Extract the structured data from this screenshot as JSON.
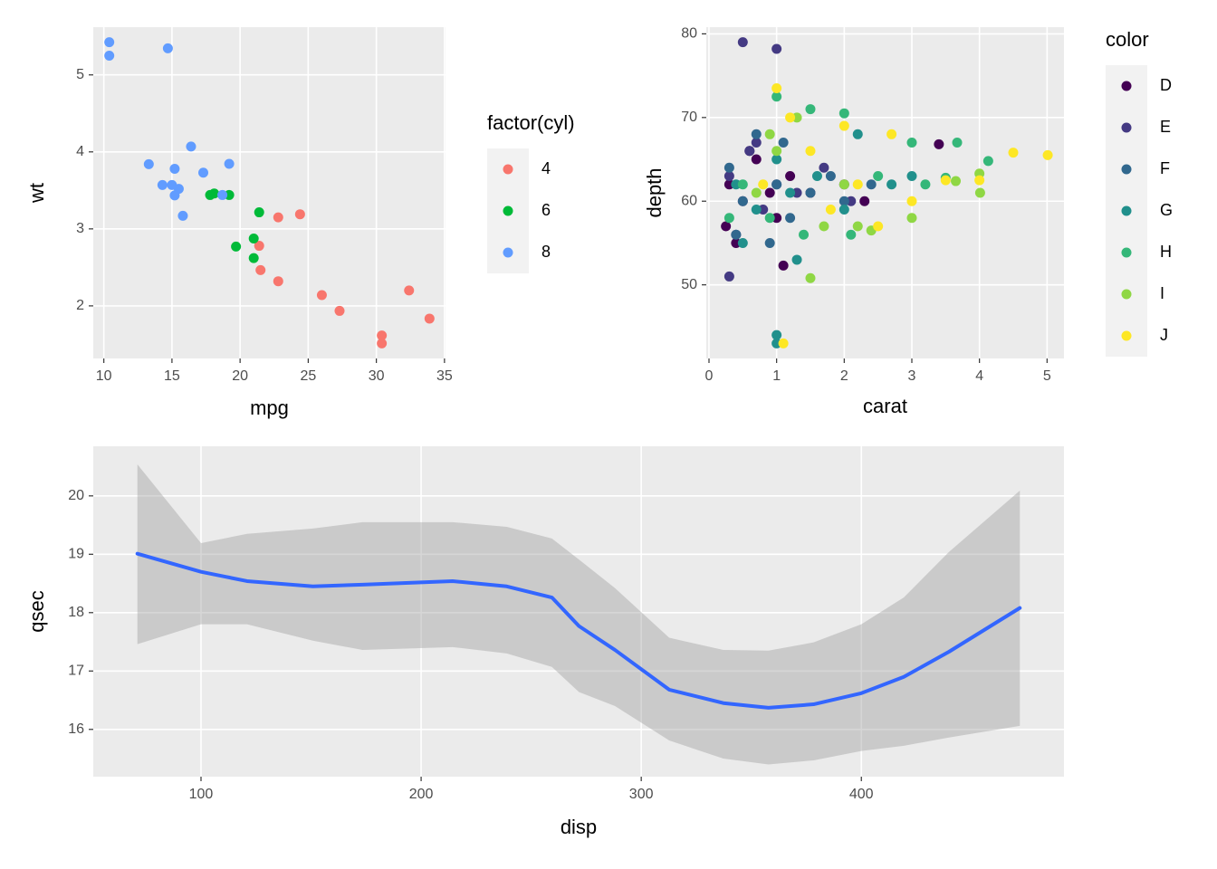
{
  "chart_data": [
    {
      "type": "scatter",
      "x_label": "mpg",
      "y_label": "wt",
      "legend_title": "factor(cyl)",
      "xlim": [
        9.225,
        35.075
      ],
      "ylim": [
        1.317,
        5.62
      ],
      "xticks": [
        10,
        15,
        20,
        25,
        30,
        35
      ],
      "yticks": [
        2,
        3,
        4,
        5
      ],
      "grid": true,
      "legend": "right",
      "series": [
        {
          "name": "4",
          "color": "#F8766D",
          "x": [
            22.8,
            24.4,
            22.8,
            32.4,
            30.4,
            33.9,
            21.5,
            27.3,
            26.0,
            30.4,
            21.4
          ],
          "y": [
            2.32,
            3.19,
            3.15,
            2.2,
            1.615,
            1.835,
            2.465,
            1.935,
            2.14,
            1.513,
            2.78
          ]
        },
        {
          "name": "6",
          "color": "#00BA38",
          "x": [
            21.0,
            21.0,
            21.4,
            18.1,
            19.2,
            17.8,
            19.7
          ],
          "y": [
            2.62,
            2.875,
            3.215,
            3.46,
            3.44,
            3.44,
            2.77
          ]
        },
        {
          "name": "8",
          "color": "#619CFF",
          "x": [
            18.7,
            14.3,
            16.4,
            17.3,
            15.2,
            10.4,
            10.4,
            14.7,
            15.5,
            15.2,
            13.3,
            19.2,
            15.8,
            15.0
          ],
          "y": [
            3.44,
            3.57,
            4.07,
            3.73,
            3.78,
            5.25,
            5.424,
            5.345,
            3.52,
            3.435,
            3.84,
            3.845,
            3.17,
            3.57
          ]
        }
      ]
    },
    {
      "type": "scatter",
      "x_label": "carat",
      "y_label": "depth",
      "legend_title": "color",
      "xlim": [
        -0.04,
        5.25
      ],
      "ylim": [
        41.2,
        80.8
      ],
      "xticks": [
        0,
        1,
        2,
        3,
        4,
        5
      ],
      "yticks": [
        50,
        60,
        70,
        80
      ],
      "grid": true,
      "legend": "right",
      "series": [
        {
          "name": "D",
          "color": "#440154",
          "x": [
            0.3,
            0.5,
            0.7,
            0.9,
            1.0,
            1.2,
            1.5,
            2.0,
            2.3,
            3.4,
            0.25,
            0.6,
            1.1,
            0.4
          ],
          "y": [
            62,
            60,
            65,
            61,
            58,
            63,
            61,
            62,
            60,
            66.8,
            57,
            66,
            52.3,
            55
          ]
        },
        {
          "name": "E",
          "color": "#443A83",
          "x": [
            0.5,
            1.0,
            0.3,
            0.3,
            0.6,
            0.8,
            1.0,
            1.3,
            1.7,
            2.1,
            0.4,
            0.7
          ],
          "y": [
            79,
            78.2,
            51,
            63,
            66,
            59,
            62,
            61,
            64,
            60,
            56,
            67
          ]
        },
        {
          "name": "F",
          "color": "#31688E",
          "x": [
            0.3,
            0.5,
            0.7,
            1.0,
            1.2,
            1.5,
            1.8,
            2.0,
            2.4,
            0.9,
            0.4,
            1.1
          ],
          "y": [
            64,
            60,
            68,
            62,
            58,
            61,
            63,
            60,
            62,
            55,
            56,
            67
          ]
        },
        {
          "name": "G",
          "color": "#21908C",
          "x": [
            1.0,
            1.0,
            0.4,
            0.7,
            1.0,
            1.2,
            1.6,
            2.0,
            2.2,
            2.7,
            3.0,
            0.5,
            1.3
          ],
          "y": [
            44,
            43,
            62,
            59,
            65,
            61,
            63,
            59,
            68,
            62,
            63,
            55,
            53
          ]
        },
        {
          "name": "H",
          "color": "#35B779",
          "x": [
            0.5,
            1.0,
            1.5,
            2.0,
            2.5,
            3.0,
            3.2,
            3.5,
            3.67,
            4.13,
            0.9,
            1.4,
            2.1,
            0.3
          ],
          "y": [
            62,
            72.5,
            71,
            70.5,
            63,
            67,
            62,
            62.8,
            67,
            64.8,
            58,
            56,
            56,
            58
          ]
        },
        {
          "name": "I",
          "color": "#8FD744",
          "x": [
            1.5,
            1.0,
            1.3,
            2.0,
            2.4,
            3.0,
            3.65,
            4.0,
            4.01,
            0.7,
            1.7,
            2.2,
            0.9
          ],
          "y": [
            50.8,
            66,
            70,
            62,
            56.5,
            58,
            62.4,
            63.3,
            61,
            61,
            57,
            57,
            68
          ]
        },
        {
          "name": "J",
          "color": "#FDE725",
          "x": [
            1.1,
            1.0,
            1.2,
            1.5,
            2.0,
            2.2,
            2.7,
            3.0,
            4.0,
            4.5,
            5.01,
            0.8,
            1.8,
            2.5,
            3.5
          ],
          "y": [
            43,
            73.5,
            70,
            66,
            69,
            62,
            68,
            60,
            62.5,
            65.8,
            65.5,
            62,
            59,
            57,
            62.5
          ]
        }
      ]
    },
    {
      "type": "line",
      "x_label": "disp",
      "y_label": "qsec",
      "xlim": [
        51.05,
        492.05
      ],
      "ylim": [
        15.19,
        20.85
      ],
      "xticks": [
        100,
        200,
        300,
        400
      ],
      "yticks": [
        16,
        17,
        18,
        19,
        20
      ],
      "grid": true,
      "band_color": "#999999",
      "series": [
        {
          "color": "#3366FF",
          "x": [
            71.1,
            100,
            120.9,
            150.8,
            173.4,
            214.3,
            238.9,
            259.4,
            271.7,
            288.1,
            312.7,
            337.3,
            357.8,
            378.3,
            400,
            419.3,
            439.8,
            472
          ],
          "values": [
            19.01,
            18.7,
            18.54,
            18.45,
            18.48,
            18.54,
            18.45,
            18.26,
            17.77,
            17.36,
            16.68,
            16.45,
            16.37,
            16.43,
            16.62,
            16.9,
            17.33,
            18.08
          ],
          "upper": [
            20.54,
            19.19,
            19.35,
            19.44,
            19.55,
            19.55,
            19.47,
            19.27,
            18.91,
            18.42,
            17.57,
            17.36,
            17.35,
            17.49,
            17.8,
            18.26,
            19.04,
            20.09
          ],
          "lower": [
            17.46,
            17.8,
            17.8,
            17.52,
            17.36,
            17.41,
            17.3,
            17.07,
            16.64,
            16.4,
            15.81,
            15.5,
            15.4,
            15.47,
            15.63,
            15.72,
            15.86,
            16.06
          ]
        }
      ]
    }
  ]
}
